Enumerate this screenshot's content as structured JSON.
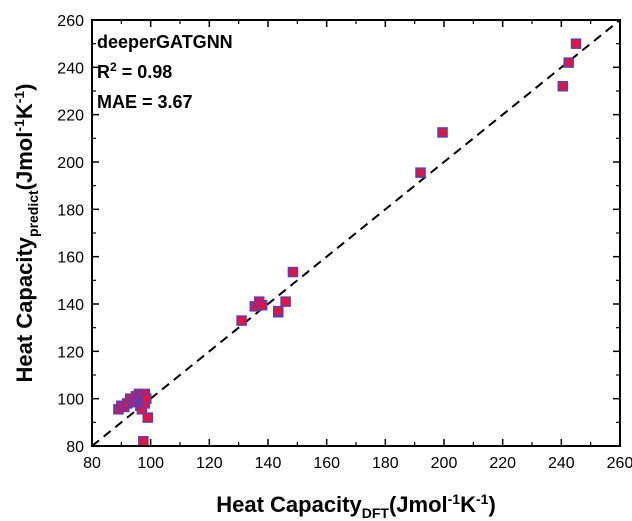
{
  "chart_data": {
    "type": "scatter",
    "title": "",
    "xlabel": {
      "main": "Heat Capacity",
      "sub": "DFT",
      "unit_pre": "(Jmol",
      "sup1": "-1",
      "unit_mid": "K",
      "sup2": "-1",
      "unit_post": ")"
    },
    "ylabel": {
      "main": "Heat Capacity",
      "sub": "predict",
      "unit_pre": "(Jmol",
      "sup1": "-1",
      "unit_mid": "K",
      "sup2": "-1",
      "unit_post": ")"
    },
    "xlim": [
      80,
      260
    ],
    "ylim": [
      80,
      260
    ],
    "xticks": [
      80,
      100,
      120,
      140,
      160,
      180,
      200,
      220,
      240,
      260
    ],
    "yticks": [
      80,
      100,
      120,
      140,
      160,
      180,
      200,
      220,
      240,
      260
    ],
    "grid": false,
    "reference_line": {
      "style": "dashed",
      "from": [
        80,
        80
      ],
      "to": [
        260,
        260
      ]
    },
    "annotations": {
      "model": "deeperGATGNN",
      "r2_prefix": "R",
      "r2_sup": "2",
      "r2_value": " = 0.98",
      "mae": "MAE = 3.67"
    },
    "marker": {
      "shape": "square",
      "fill": "#e8123c",
      "stroke": "#5a3db8"
    },
    "points": [
      {
        "x": 89,
        "y": 95.5
      },
      {
        "x": 90,
        "y": 97
      },
      {
        "x": 91,
        "y": 96.5
      },
      {
        "x": 92,
        "y": 98
      },
      {
        "x": 93,
        "y": 100
      },
      {
        "x": 94,
        "y": 98.5
      },
      {
        "x": 95,
        "y": 99
      },
      {
        "x": 95,
        "y": 101
      },
      {
        "x": 96,
        "y": 100
      },
      {
        "x": 96,
        "y": 102
      },
      {
        "x": 96.5,
        "y": 97
      },
      {
        "x": 97,
        "y": 95.5
      },
      {
        "x": 97,
        "y": 101
      },
      {
        "x": 97.5,
        "y": 99
      },
      {
        "x": 98,
        "y": 98
      },
      {
        "x": 98,
        "y": 102
      },
      {
        "x": 98.5,
        "y": 100
      },
      {
        "x": 97.5,
        "y": 82
      },
      {
        "x": 99,
        "y": 92
      },
      {
        "x": 131,
        "y": 133
      },
      {
        "x": 135.5,
        "y": 139
      },
      {
        "x": 137,
        "y": 141
      },
      {
        "x": 138,
        "y": 139.5
      },
      {
        "x": 143.5,
        "y": 136.5
      },
      {
        "x": 143.5,
        "y": 137
      },
      {
        "x": 146,
        "y": 141
      },
      {
        "x": 148.5,
        "y": 153.5
      },
      {
        "x": 192,
        "y": 195.5
      },
      {
        "x": 199.5,
        "y": 212.5
      },
      {
        "x": 240.5,
        "y": 232
      },
      {
        "x": 242.5,
        "y": 242
      },
      {
        "x": 245,
        "y": 250
      }
    ]
  }
}
